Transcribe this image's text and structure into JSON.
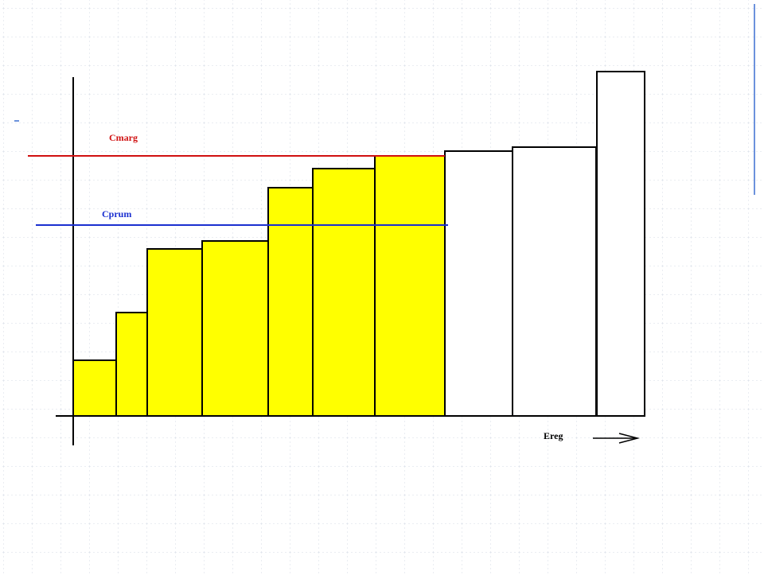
{
  "labels": {
    "marginal_cost": "Cmarg",
    "average_cost": "Cprum",
    "energy": "Ereg"
  }
}
